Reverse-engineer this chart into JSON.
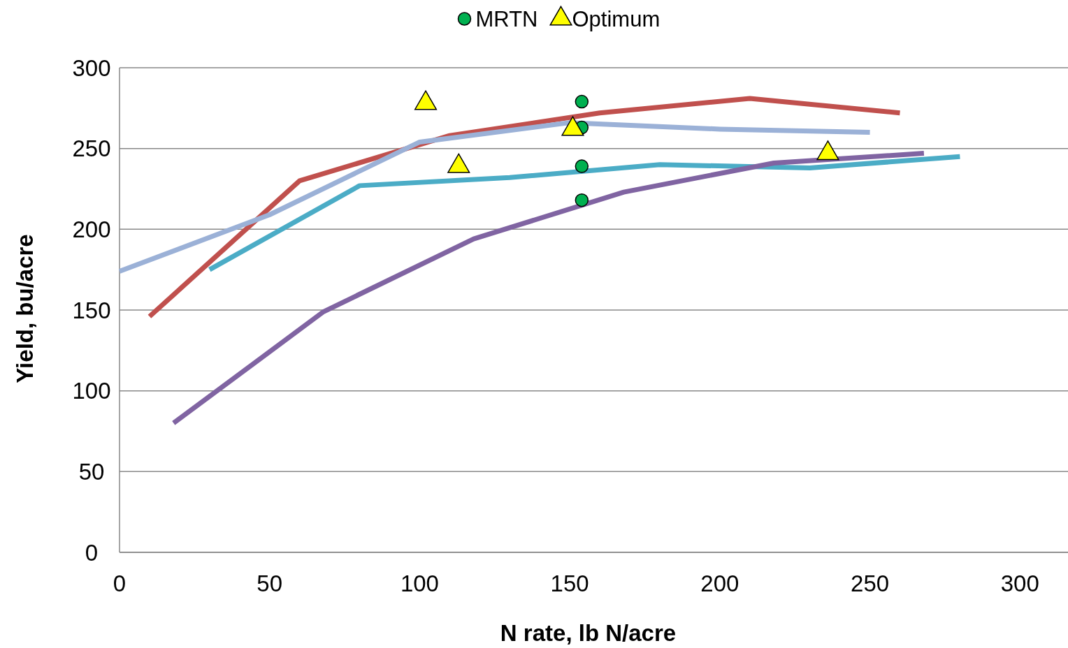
{
  "chart_data": {
    "type": "line",
    "xlabel": "N rate, lb N/acre",
    "ylabel": "Yield, bu/acre",
    "xlim": [
      0,
      316
    ],
    "ylim": [
      0,
      300
    ],
    "xticks": [
      0,
      50,
      100,
      150,
      200,
      250,
      300
    ],
    "yticks": [
      0,
      50,
      100,
      150,
      200,
      250,
      300
    ],
    "grid": "y",
    "legend": "top",
    "line_style": "solid",
    "series": [
      {
        "color": "#c0504d",
        "x": [
          10,
          60,
          110,
          160,
          210,
          260
        ],
        "values": [
          146,
          230,
          258,
          272,
          281,
          272
        ]
      },
      {
        "color": "#9bb1d7",
        "x": [
          0,
          50,
          100,
          150,
          200,
          250
        ],
        "values": [
          174,
          209,
          254,
          266,
          262,
          260
        ]
      },
      {
        "color": "#4bacc6",
        "x": [
          30,
          80,
          130,
          180,
          230,
          280
        ],
        "values": [
          175,
          227,
          232,
          240,
          238,
          245
        ]
      },
      {
        "color": "#8064a2",
        "x": [
          18,
          68,
          118,
          168,
          218,
          268
        ],
        "values": [
          80,
          149,
          194,
          223,
          241,
          247
        ]
      },
      {
        "name": "MRTN",
        "type": "scatter",
        "marker": "circle",
        "color": "#00b050",
        "x": [
          154,
          154,
          154,
          154
        ],
        "values": [
          279,
          263,
          239,
          218
        ]
      },
      {
        "name": "Optimum",
        "type": "scatter",
        "marker": "triangle",
        "color": "#ffff00",
        "x": [
          102,
          113,
          151,
          236
        ],
        "values": [
          278,
          239,
          262,
          247
        ]
      }
    ]
  }
}
